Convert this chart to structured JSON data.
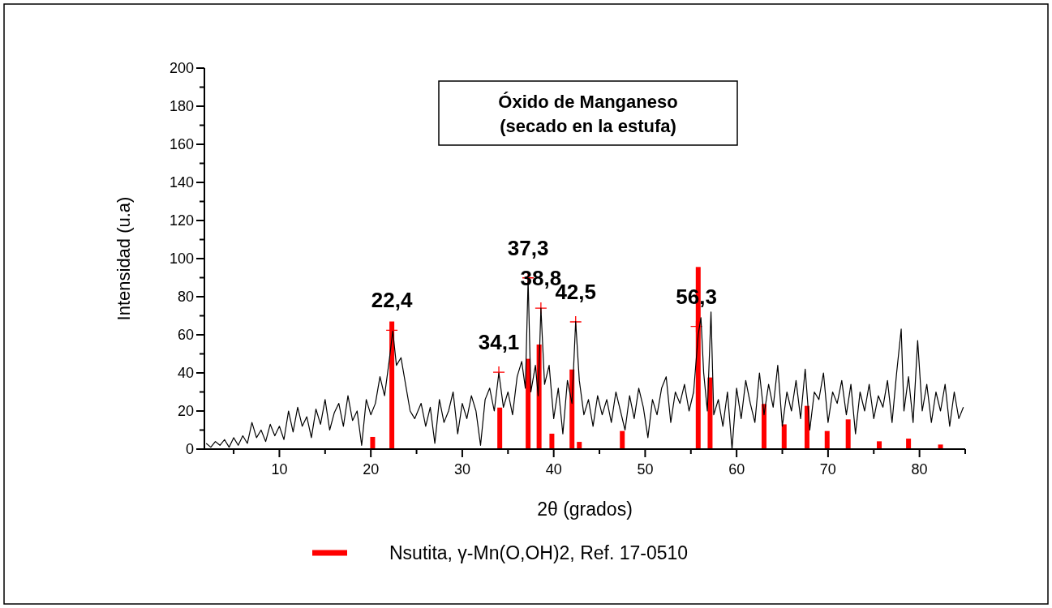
{
  "chart_data": {
    "type": "line",
    "title": "Óxido de Manganeso",
    "subtitle": "(secado en la estufa)",
    "xlabel": "2θ (grados)",
    "ylabel": "Intensidad (u.a)",
    "xlim": [
      1.8,
      85
    ],
    "xticks": [
      {
        "value": 5,
        "label": null
      },
      10,
      {
        "value": 15,
        "label": null
      },
      20,
      {
        "value": 25,
        "label": null
      },
      30,
      {
        "value": 35,
        "label": null
      },
      40,
      {
        "value": 45,
        "label": null
      },
      50,
      {
        "value": 55,
        "label": null
      },
      60,
      {
        "value": 65,
        "label": null
      },
      70,
      {
        "value": 75,
        "label": null
      },
      80,
      {
        "value": 85,
        "label": null
      }
    ],
    "ylim": [
      0,
      200
    ],
    "yticks": [
      0,
      {
        "value": 10,
        "label": null
      },
      20,
      {
        "value": 30,
        "label": null
      },
      40,
      {
        "value": 50,
        "label": null
      },
      60,
      {
        "value": 70,
        "label": null
      },
      80,
      {
        "value": 90,
        "label": null
      },
      100,
      {
        "value": 110,
        "label": null
      },
      120,
      {
        "value": 130,
        "label": null
      },
      140,
      {
        "value": 150,
        "label": null
      },
      160,
      {
        "value": 170,
        "label": null
      },
      180,
      {
        "value": 190,
        "label": null
      },
      200
    ],
    "grid": false,
    "legend": "bottom",
    "series": [
      {
        "color": "#000000",
        "x": [
          2,
          2.5,
          3,
          3.5,
          4,
          4.5,
          5,
          5.5,
          6,
          6.5,
          7,
          7.5,
          8,
          8.5,
          9,
          9.5,
          10,
          10.5,
          11,
          11.5,
          12,
          12.5,
          13,
          13.5,
          14,
          14.5,
          15,
          15.5,
          16,
          16.5,
          17,
          17.5,
          18,
          18.5,
          19,
          19.5,
          20,
          20.5,
          21,
          21.5,
          22,
          22.4,
          22.8,
          23.3,
          23.8,
          24.3,
          24.8,
          25.5,
          26,
          26.5,
          27,
          27.5,
          28,
          28.5,
          29,
          29.5,
          30,
          30.5,
          31,
          31.5,
          32,
          32.5,
          33,
          33.5,
          34,
          34.5,
          35,
          35.5,
          36,
          36.5,
          36.9,
          37.2,
          37.5,
          38,
          38.3,
          38.6,
          39,
          39.5,
          40,
          40.5,
          41,
          41.5,
          42,
          42.4,
          42.8,
          43.3,
          43.8,
          44.3,
          44.8,
          45.3,
          45.8,
          46.3,
          46.8,
          47.3,
          47.8,
          48.3,
          48.8,
          49.3,
          49.8,
          50.3,
          50.8,
          51.3,
          51.8,
          52.3,
          52.8,
          53.3,
          53.8,
          54.3,
          54.8,
          55.3,
          55.8,
          56.1,
          56.4,
          56.8,
          57.2,
          57.5,
          58,
          58.5,
          59,
          59.5,
          60,
          60.5,
          61,
          61.5,
          62,
          62.5,
          63,
          63.5,
          64,
          64.5,
          65,
          65.5,
          66,
          66.5,
          67,
          67.5,
          68,
          68.5,
          69,
          69.5,
          70,
          70.5,
          71,
          71.5,
          72,
          72.5,
          73,
          73.5,
          74,
          74.5,
          75,
          75.5,
          76,
          76.5,
          77,
          77.5,
          78,
          78.3,
          78.8,
          79.3,
          79.8,
          80.3,
          80.8,
          81.3,
          81.8,
          82.3,
          82.8,
          83.3,
          83.8,
          84.3,
          84.8
        ],
        "values": [
          3,
          1,
          4,
          2,
          5,
          1,
          6,
          2,
          7,
          3,
          14,
          6,
          10,
          4,
          13,
          7,
          12,
          5,
          20,
          9,
          22,
          12,
          17,
          6,
          21,
          13,
          26,
          10,
          19,
          24,
          12,
          28,
          15,
          20,
          2,
          26,
          18,
          24,
          38,
          28,
          46,
          62,
          44,
          48,
          34,
          20,
          16,
          24,
          12,
          22,
          3,
          26,
          14,
          20,
          30,
          8,
          24,
          16,
          28,
          20,
          2,
          26,
          32,
          20,
          40,
          22,
          30,
          18,
          38,
          46,
          32,
          89,
          30,
          44,
          28,
          74,
          34,
          44,
          16,
          32,
          8,
          36,
          24,
          67,
          36,
          18,
          26,
          12,
          28,
          18,
          26,
          14,
          30,
          20,
          10,
          28,
          16,
          32,
          22,
          6,
          26,
          18,
          32,
          38,
          14,
          30,
          24,
          34,
          20,
          30,
          60,
          69,
          40,
          20,
          72,
          18,
          26,
          12,
          30,
          0,
          32,
          16,
          36,
          24,
          14,
          40,
          18,
          34,
          22,
          44,
          12,
          30,
          20,
          36,
          16,
          42,
          10,
          30,
          26,
          40,
          14,
          30,
          24,
          36,
          18,
          34,
          8,
          30,
          20,
          34,
          16,
          28,
          22,
          36,
          14,
          40,
          63,
          20,
          38,
          14,
          57,
          20,
          34,
          14,
          30,
          20,
          34,
          12,
          30,
          16,
          22
        ]
      },
      {
        "type": "bar",
        "name": "Nsutita, γ-Mn(O,OH)2, Ref. 17-0510",
        "color": "#ff0000",
        "x": [
          20.2,
          22.3,
          34.1,
          37.2,
          38.4,
          39.8,
          42.0,
          42.8,
          47.5,
          55.8,
          57.1,
          63.0,
          65.2,
          67.7,
          69.9,
          72.2,
          75.6,
          78.8,
          82.3
        ],
        "values": [
          6.4,
          67,
          21.8,
          47.4,
          54.9,
          8.1,
          41.8,
          3.8,
          9.5,
          95.6,
          37.6,
          23.7,
          13,
          22.7,
          9.5,
          15.6,
          4.1,
          5.5,
          2.4
        ]
      },
      {
        "type": "scatter",
        "color": "#ff0000",
        "marker": "cross",
        "x": [
          22.3,
          34.0,
          37.2,
          38.6,
          42.4,
          55.6
        ],
        "values": [
          62.4,
          40.4,
          89.9,
          74,
          66.8,
          64.4
        ]
      }
    ],
    "annotations": [
      {
        "text": "22,4",
        "x": 22.3,
        "y": 62.4
      },
      {
        "text": "34,1",
        "x": 34.0,
        "y": 40.4
      },
      {
        "text": "37,3",
        "x": 37.2,
        "y": 89.9
      },
      {
        "text": "38,8",
        "x": 38.6,
        "y": 74
      },
      {
        "text": "42,5",
        "x": 42.4,
        "y": 66.8
      },
      {
        "text": "56,3",
        "x": 55.6,
        "y": 64.4
      }
    ]
  }
}
